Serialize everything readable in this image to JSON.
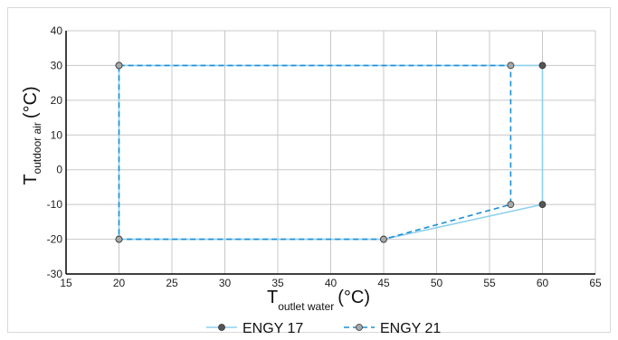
{
  "chart_data": {
    "type": "line",
    "xlim": [
      15,
      65
    ],
    "ylim": [
      -30,
      40
    ],
    "xticks": [
      15,
      20,
      25,
      30,
      35,
      40,
      45,
      50,
      55,
      60,
      65
    ],
    "yticks": [
      -30,
      -20,
      -10,
      0,
      10,
      20,
      30,
      40
    ],
    "grid": true,
    "legend_position": "bottom",
    "xlabel": {
      "main": "T",
      "sub": "outlet water",
      "unit": "(°C)"
    },
    "ylabel": {
      "main": "T",
      "sub": "outdoor air",
      "unit": "(°C)"
    },
    "series": [
      {
        "name": "ENGY 17",
        "color": "#8fd0ee",
        "marker_color": "#555555",
        "dashed": false,
        "points": [
          [
            20,
            30
          ],
          [
            60,
            30
          ],
          [
            60,
            -10
          ],
          [
            45,
            -20
          ],
          [
            20,
            -20
          ],
          [
            20,
            30
          ]
        ]
      },
      {
        "name": "ENGY 21",
        "color": "#1b8fd6",
        "marker_color": "#a8a8a8",
        "dashed": true,
        "points": [
          [
            20,
            30
          ],
          [
            57,
            30
          ],
          [
            57,
            -10
          ],
          [
            45,
            -20
          ],
          [
            20,
            -20
          ],
          [
            20,
            30
          ]
        ]
      }
    ]
  }
}
